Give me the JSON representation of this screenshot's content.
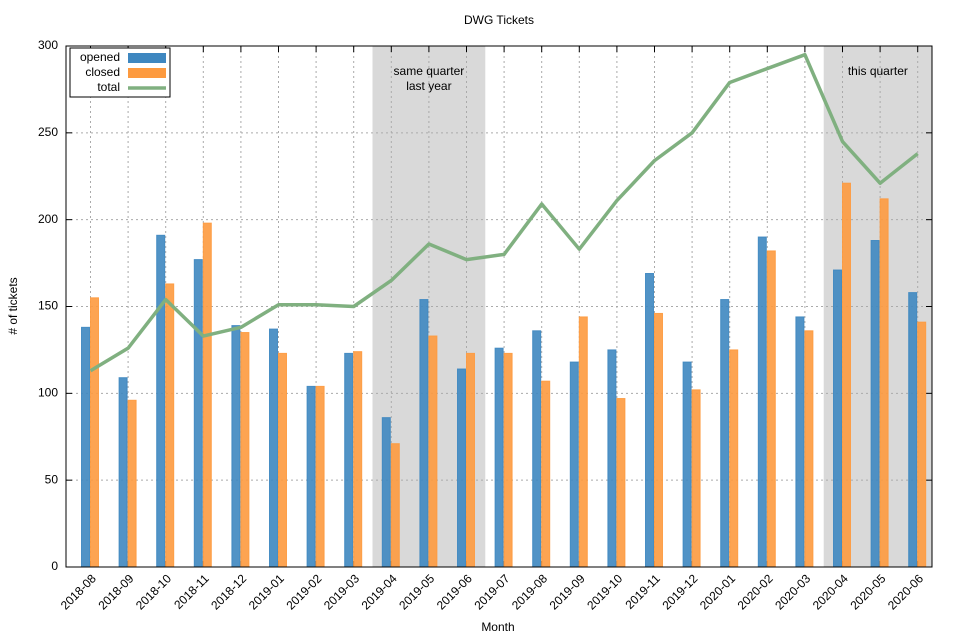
{
  "chart_data": {
    "type": "bar",
    "title": "DWG Tickets",
    "x_label": "Month",
    "y_label": "# of tickets",
    "categories": [
      "2018-08",
      "2018-09",
      "2018-10",
      "2018-11",
      "2018-12",
      "2019-01",
      "2019-02",
      "2019-03",
      "2019-04",
      "2019-05",
      "2019-06",
      "2019-07",
      "2019-08",
      "2019-09",
      "2019-10",
      "2019-11",
      "2019-12",
      "2020-01",
      "2020-02",
      "2020-03",
      "2020-04",
      "2020-05",
      "2020-06"
    ],
    "series": [
      {
        "name": "opened",
        "type": "bar",
        "color": "#3e87c0",
        "values": [
          138,
          109,
          191,
          177,
          139,
          137,
          104,
          123,
          86,
          154,
          114,
          126,
          136,
          118,
          125,
          169,
          118,
          154,
          190,
          144,
          171,
          188,
          158
        ]
      },
      {
        "name": "closed",
        "type": "bar",
        "color": "#fd9a3f",
        "values": [
          155,
          96,
          163,
          198,
          135,
          123,
          104,
          124,
          71,
          133,
          123,
          123,
          107,
          144,
          97,
          146,
          102,
          125,
          182,
          136,
          221,
          212,
          141
        ]
      },
      {
        "name": "total",
        "type": "line",
        "color": "#80b080",
        "values": [
          113,
          126,
          154,
          133,
          138,
          151,
          151,
          150,
          165,
          186,
          177,
          180,
          209,
          183,
          211,
          234,
          250,
          279,
          287,
          295,
          245,
          221,
          238
        ]
      }
    ],
    "ylim": [
      0,
      300
    ],
    "yticks": [
      0,
      50,
      100,
      150,
      200,
      250,
      300
    ],
    "grid": true,
    "legend": "upper left",
    "highlights": [
      {
        "from": "2019-04",
        "to": "2019-06",
        "label": [
          "same quarter",
          "last year"
        ]
      },
      {
        "from": "2020-04",
        "to": "2020-06",
        "label": [
          "this quarter"
        ]
      }
    ]
  }
}
